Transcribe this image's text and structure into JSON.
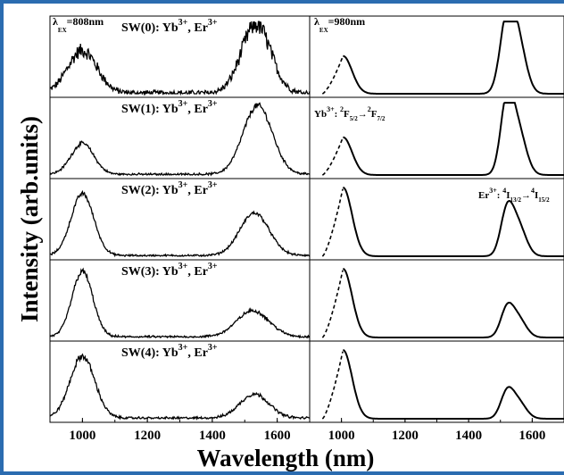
{
  "chart_data": {
    "type": "line",
    "ylabel": "Intensity (arb.units)",
    "xlabel": "Wavelength (nm)",
    "columns": [
      {
        "excitation_label": "λ",
        "excitation_sub": "EX",
        "excitation_value": "=808nm",
        "xlim": [
          900,
          1700
        ],
        "xticks": [
          "1000",
          "1200",
          "1400",
          "1600"
        ],
        "xtick_values": [
          1000,
          1200,
          1400,
          1600
        ]
      },
      {
        "excitation_label": "λ",
        "excitation_sub": "EX",
        "excitation_value": "=980nm",
        "xlim": [
          900,
          1700
        ],
        "xticks": [
          "1000",
          "1200",
          "1400",
          "1600"
        ],
        "xtick_values": [
          1000,
          1200,
          1400,
          1600
        ]
      }
    ],
    "panels": [
      {
        "label_base": "SW(0): Yb",
        "label_sup1": "3+",
        "label_mid": ", Er",
        "label_sup2": "3+",
        "left_peaks": [
          {
            "center": 1000,
            "height": 0.62,
            "width": 45
          },
          {
            "center": 1535,
            "height": 1.0,
            "width": 45
          }
        ],
        "left_noise": 0.18,
        "right_peaks": [
          {
            "center": 1520,
            "height": 1.0,
            "width": 22
          },
          {
            "center": 1555,
            "height": 0.75,
            "width": 25
          }
        ],
        "right_pump": {
          "center": 1005,
          "height": 0.55,
          "width": 25,
          "dashed_start": 940
        }
      },
      {
        "label_base": "SW(1): Yb",
        "label_sup1": "3+",
        "label_mid": ", Er",
        "label_sup2": "3+",
        "left_peaks": [
          {
            "center": 1000,
            "height": 0.45,
            "width": 35
          },
          {
            "center": 1540,
            "height": 1.0,
            "width": 45
          }
        ],
        "left_noise": 0.05,
        "right_peaks": [
          {
            "center": 1520,
            "height": 1.0,
            "width": 20
          },
          {
            "center": 1555,
            "height": 0.65,
            "width": 25
          }
        ],
        "right_pump": {
          "center": 1005,
          "height": 0.55,
          "width": 25,
          "dashed_start": 940
        }
      },
      {
        "label_base": "SW(2): Yb",
        "label_sup1": "3+",
        "label_mid": ", Er",
        "label_sup2": "3+",
        "left_peaks": [
          {
            "center": 1000,
            "height": 0.9,
            "width": 35
          },
          {
            "center": 1530,
            "height": 0.62,
            "width": 45
          }
        ],
        "left_noise": 0.04,
        "right_peaks": [
          {
            "center": 1520,
            "height": 0.6,
            "width": 20
          },
          {
            "center": 1555,
            "height": 0.45,
            "width": 25
          }
        ],
        "right_pump": {
          "center": 1005,
          "height": 1.0,
          "width": 25,
          "dashed_start": 940
        }
      },
      {
        "label_base": "SW(3): Yb",
        "label_sup1": "3+",
        "label_mid": ", Er",
        "label_sup2": "3+",
        "left_peaks": [
          {
            "center": 1000,
            "height": 0.95,
            "width": 32
          },
          {
            "center": 1525,
            "height": 0.38,
            "width": 50
          }
        ],
        "left_noise": 0.05,
        "right_peaks": [
          {
            "center": 1520,
            "height": 0.38,
            "width": 20
          },
          {
            "center": 1555,
            "height": 0.28,
            "width": 25
          }
        ],
        "right_pump": {
          "center": 1005,
          "height": 1.0,
          "width": 25,
          "dashed_start": 940
        }
      },
      {
        "label_base": "SW(4): Yb",
        "label_sup1": "3+",
        "label_mid": ", Er",
        "label_sup2": "3+",
        "left_peaks": [
          {
            "center": 1000,
            "height": 0.9,
            "width": 38
          },
          {
            "center": 1530,
            "height": 0.35,
            "width": 45
          }
        ],
        "left_noise": 0.06,
        "right_peaks": [
          {
            "center": 1520,
            "height": 0.35,
            "width": 20
          },
          {
            "center": 1555,
            "height": 0.25,
            "width": 25
          }
        ],
        "right_pump": {
          "center": 1005,
          "height": 1.0,
          "width": 25,
          "dashed_start": 940
        }
      }
    ],
    "annotations": [
      {
        "panel": 1,
        "column": 1,
        "parts": [
          "Yb",
          "3+",
          ": ",
          "2",
          "F",
          "5/2",
          "→",
          "2",
          "F",
          "7/2"
        ],
        "roles": [
          "t",
          "sup",
          "t",
          "sup",
          "t",
          "sub",
          "t",
          "sup",
          "t",
          "sub"
        ]
      },
      {
        "panel": 2,
        "column": 1,
        "parts": [
          "Er",
          "3+",
          ": ",
          "4",
          "I",
          "13/2",
          "→",
          "4",
          "I",
          "15/2"
        ],
        "roles": [
          "t",
          "sup",
          "t",
          "sup",
          "t",
          "sub",
          "t",
          "sup",
          "t",
          "sub"
        ]
      }
    ],
    "line_color": "#000000",
    "frame_color": "#2b6cb0",
    "grid": false
  }
}
